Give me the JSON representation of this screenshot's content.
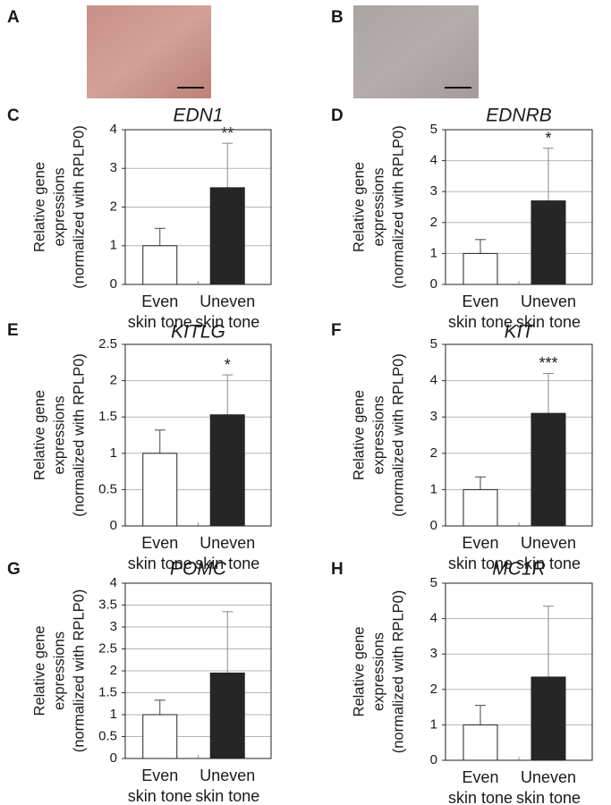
{
  "images": [
    {
      "label": "A"
    },
    {
      "label": "B"
    }
  ],
  "chart_data": [
    {
      "type": "bar",
      "panel": "C",
      "title": "EDN1",
      "ylabel": [
        "Relative gene",
        "expressions",
        "(normalized with RPLP0)"
      ],
      "categories": [
        [
          "Even",
          "skin tone"
        ],
        [
          "Uneven",
          "skin tone"
        ]
      ],
      "values": [
        1.0,
        2.5
      ],
      "errors": [
        0.45,
        1.15
      ],
      "annotations": [
        null,
        "**"
      ],
      "colors": [
        "#ffffff",
        "#262626"
      ],
      "ylim": [
        0,
        4
      ],
      "yticks": [
        0,
        1,
        2,
        3,
        4
      ],
      "grid": true
    },
    {
      "type": "bar",
      "panel": "D",
      "title": "EDNRB",
      "ylabel": [
        "Relative gene",
        "expressions",
        "(normalized with RPLP0)"
      ],
      "categories": [
        [
          "Even",
          "skin tone"
        ],
        [
          "Uneven",
          "skin tone"
        ]
      ],
      "values": [
        1.0,
        2.7
      ],
      "errors": [
        0.45,
        1.7
      ],
      "annotations": [
        null,
        "*"
      ],
      "colors": [
        "#ffffff",
        "#262626"
      ],
      "ylim": [
        0,
        5
      ],
      "yticks": [
        0,
        1,
        2,
        3,
        4,
        5
      ],
      "grid": true
    },
    {
      "type": "bar",
      "panel": "E",
      "title": "KITLG",
      "ylabel": [
        "Relative gene",
        "expressions",
        "(normalized with RPLP0)"
      ],
      "categories": [
        [
          "Even",
          "skin tone"
        ],
        [
          "Uneven",
          "skin tone"
        ]
      ],
      "values": [
        1.0,
        1.53
      ],
      "errors": [
        0.32,
        0.55
      ],
      "annotations": [
        null,
        "*"
      ],
      "colors": [
        "#ffffff",
        "#262626"
      ],
      "ylim": [
        0,
        2.5
      ],
      "yticks": [
        0,
        0.5,
        1,
        1.5,
        2,
        2.5
      ],
      "grid": true
    },
    {
      "type": "bar",
      "panel": "F",
      "title": "KIT",
      "ylabel": [
        "Relative gene",
        "expressions",
        "(normalized with RPLP0)"
      ],
      "categories": [
        [
          "Even",
          "skin tone"
        ],
        [
          "Uneven",
          "skin tone"
        ]
      ],
      "values": [
        1.0,
        3.1
      ],
      "errors": [
        0.35,
        1.1
      ],
      "annotations": [
        null,
        "***"
      ],
      "colors": [
        "#ffffff",
        "#262626"
      ],
      "ylim": [
        0,
        5
      ],
      "yticks": [
        0,
        1,
        2,
        3,
        4,
        5
      ],
      "grid": true
    },
    {
      "type": "bar",
      "panel": "G",
      "title": "POMC",
      "ylabel": [
        "Relative gene",
        "expressions",
        "(normalized with RPLP0)"
      ],
      "categories": [
        [
          "Even",
          "skin tone"
        ],
        [
          "Uneven",
          "skin tone"
        ]
      ],
      "values": [
        1.0,
        1.95
      ],
      "errors": [
        0.33,
        1.4
      ],
      "colors": [
        "#ffffff",
        "#262626"
      ],
      "ylim": [
        0,
        4
      ],
      "yticks": [
        0,
        0.5,
        1,
        1.5,
        2,
        2.5,
        3,
        3.5,
        4
      ],
      "grid": true
    },
    {
      "type": "bar",
      "panel": "H",
      "title": "MC1R",
      "ylabel": [
        "Relative gene",
        "expressions",
        "(normalized with RPLP0)"
      ],
      "categories": [
        [
          "Even",
          "skin tone"
        ],
        [
          "Uneven",
          "skin tone"
        ]
      ],
      "values": [
        1.0,
        2.35
      ],
      "errors": [
        0.55,
        2.0
      ],
      "colors": [
        "#ffffff",
        "#262626"
      ],
      "ylim": [
        0,
        5
      ],
      "yticks": [
        0,
        1,
        2,
        3,
        4,
        5
      ],
      "grid": true
    }
  ]
}
